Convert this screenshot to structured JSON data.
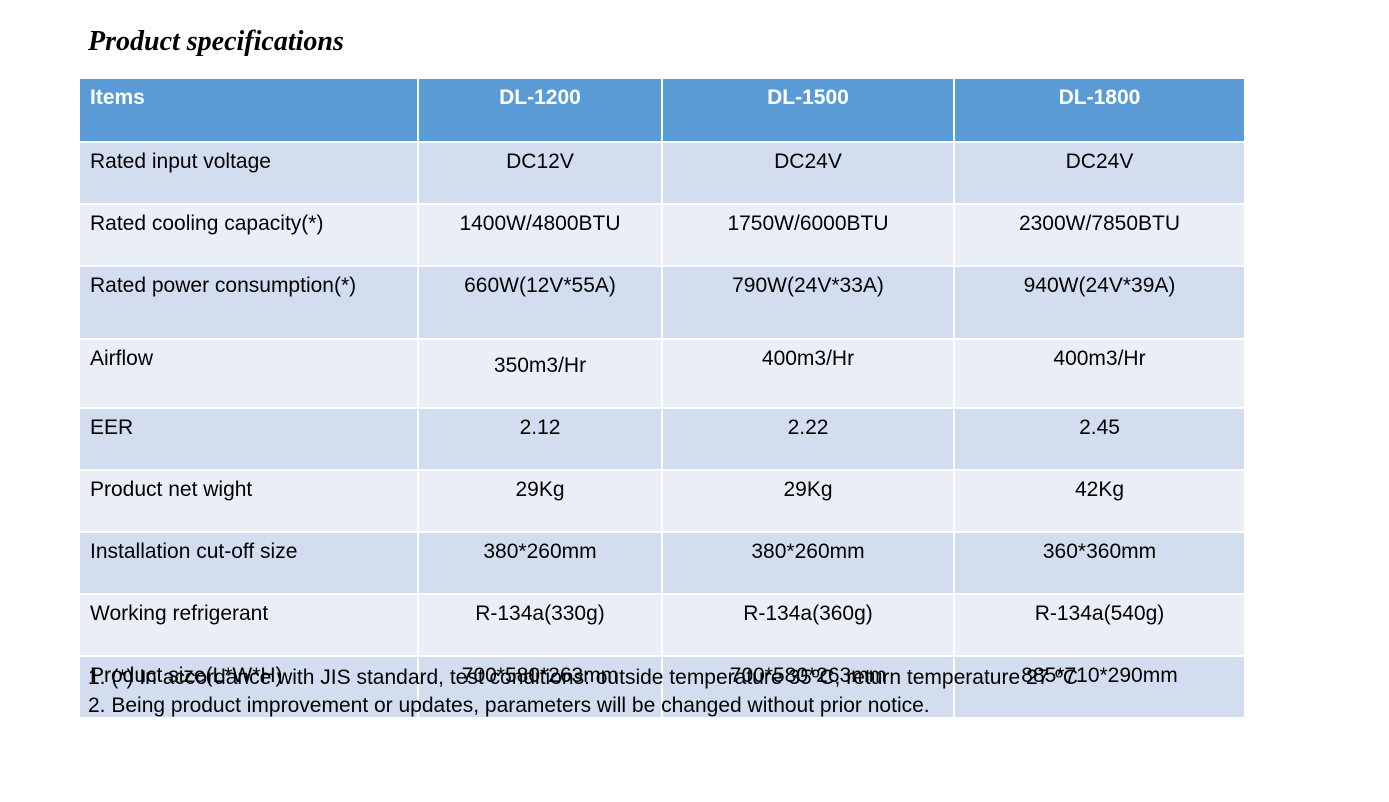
{
  "title": "Product specifications",
  "table": {
    "headers": [
      "Items",
      "DL-1200",
      "DL-1500",
      "DL-1800"
    ],
    "rows": [
      {
        "label": "Rated input voltage",
        "values": [
          "DC12V",
          "DC24V",
          "DC24V"
        ]
      },
      {
        "label": "Rated cooling capacity(*)",
        "values": [
          "1400W/4800BTU",
          "1750W/6000BTU",
          "2300W/7850BTU"
        ]
      },
      {
        "label": "Rated power consumption(*)",
        "values": [
          "660W(12V*55A)",
          "790W(24V*33A)",
          "940W(24V*39A)"
        ]
      },
      {
        "label": "Airflow",
        "values": [
          "350m3/Hr",
          "400m3/Hr",
          "400m3/Hr"
        ]
      },
      {
        "label": "EER",
        "values": [
          "2.12",
          "2.22",
          "2.45"
        ]
      },
      {
        "label": "Product net wight",
        "values": [
          "29Kg",
          "29Kg",
          "42Kg"
        ]
      },
      {
        "label": "Installation cut-off size",
        "values": [
          "380*260mm",
          "380*260mm",
          "360*360mm"
        ]
      },
      {
        "label": "Working refrigerant",
        "values": [
          "R-134a(330g)",
          "R-134a(360g)",
          "R-134a(540g)"
        ]
      },
      {
        "label": "Product size(L*W*H)",
        "values": [
          "700*580*263mm",
          "700*580*263mm",
          "885*710*290mm"
        ]
      }
    ]
  },
  "notes": [
    "1. (*) In accordance with JIS standard, test conditions: outside temperature 35ºC, return temperature 27 ºC",
    "2. Being product improvement or updates, parameters will be changed without prior notice."
  ],
  "colors": {
    "header_bg": "#5b9bd5",
    "row_dark": "#d2deef",
    "row_light": "#eaeff7"
  }
}
